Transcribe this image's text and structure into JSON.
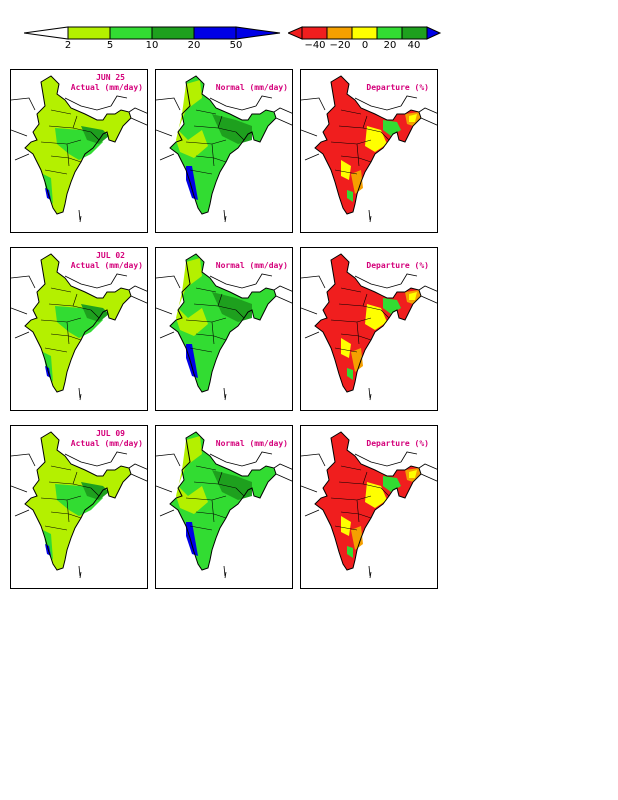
{
  "colors": {
    "white": "#ffffff",
    "light_green": "#b4f000",
    "green": "#32dc32",
    "dark_green": "#1ea01e",
    "blue": "#0000e6",
    "red": "#f01e1e",
    "orange": "#f5a000",
    "yellow": "#ffff00",
    "title_magenta": "#d4007a"
  },
  "legend_actual": {
    "ticks": [
      "2",
      "5",
      "10",
      "20",
      "50"
    ]
  },
  "legend_departure": {
    "ticks": [
      "−40",
      "−20",
      "0",
      "20",
      "40"
    ]
  },
  "rows": [
    {
      "date": "JUN 25",
      "actual_title": "Actual (mm/day)",
      "normal_title": "Normal (mm/day)",
      "departure_title": "Departure (%)"
    },
    {
      "date": "JUL 02",
      "actual_title": "Actual (mm/day)",
      "normal_title": "Normal (mm/day)",
      "departure_title": "Departure (%)"
    },
    {
      "date": "JUL 09",
      "actual_title": "Actual (mm/day)",
      "normal_title": "Normal (mm/day)",
      "departure_title": "Departure (%)"
    }
  ]
}
